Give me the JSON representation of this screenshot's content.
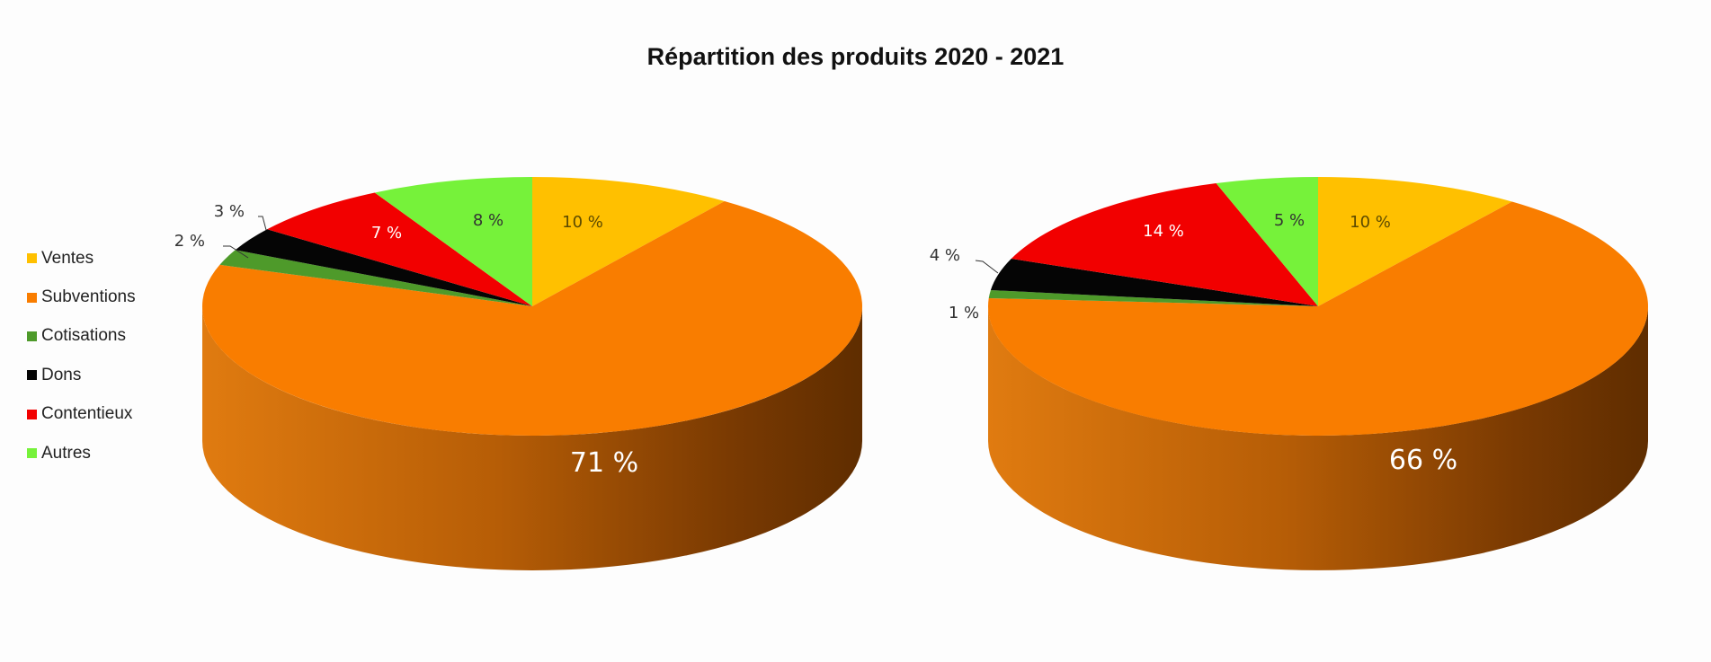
{
  "chart_data": {
    "type": "pie",
    "title": "Répartition des produits 2020 - 2021",
    "categories": [
      "Ventes",
      "Subventions",
      "Cotisations",
      "Dons",
      "Contentieux",
      "Autres"
    ],
    "colors": [
      "#FFC000",
      "#F97D00",
      "#4E9A2A",
      "#050505",
      "#F20000",
      "#76F23A"
    ],
    "legend_position": "left",
    "series": [
      {
        "values": [
          10,
          71,
          2,
          3,
          7,
          8
        ],
        "labels": [
          "10 %",
          "71 %",
          "2 %",
          "3 %",
          "7 %",
          "8 %"
        ]
      },
      {
        "values": [
          10,
          66,
          1,
          4,
          14,
          5
        ],
        "labels": [
          "10 %",
          "66 %",
          "1 %",
          "4 %",
          "14 %",
          "5 %"
        ]
      }
    ]
  }
}
